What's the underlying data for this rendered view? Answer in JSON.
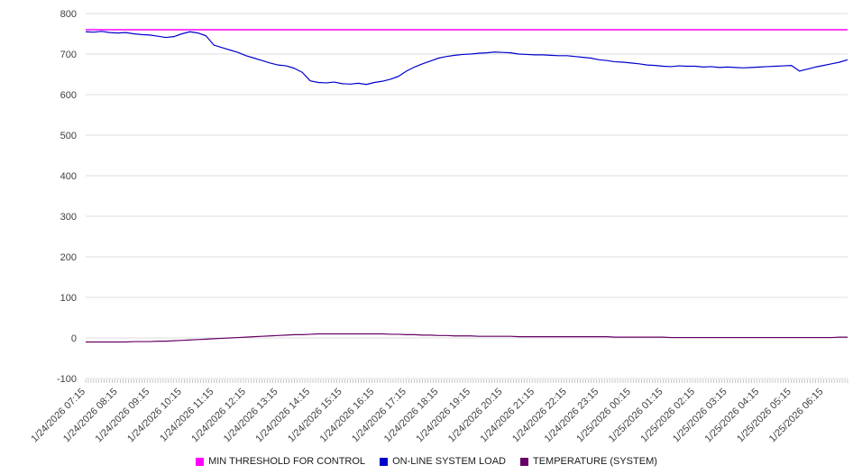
{
  "chart_data": {
    "type": "line",
    "title": "",
    "xlabel": "",
    "ylabel": "",
    "ylim": [
      -100,
      800
    ],
    "y_ticks": [
      800,
      700,
      600,
      500,
      400,
      300,
      200,
      100,
      0,
      -100
    ],
    "grid": true,
    "legend_position": "bottom",
    "x_label_every": 4,
    "x_labels": [
      "1/24/2026 07:15",
      "1/24/2026 08:15",
      "1/24/2026 09:15",
      "1/24/2026 10:15",
      "1/24/2026 11:15",
      "1/24/2026 12:15",
      "1/24/2026 13:15",
      "1/24/2026 14:15",
      "1/24/2026 15:15",
      "1/24/2026 16:15",
      "1/24/2026 17:15",
      "1/24/2026 18:15",
      "1/24/2026 19:15",
      "1/24/2026 20:15",
      "1/24/2026 21:15",
      "1/24/2026 22:15",
      "1/24/2026 23:15",
      "1/25/2026 00:15",
      "1/25/2026 01:15",
      "1/25/2026 02:15",
      "1/25/2026 03:15",
      "1/25/2026 04:15",
      "1/25/2026 05:15",
      "1/25/2026 06:15"
    ],
    "series": [
      {
        "name": "MIN THRESHOLD FOR CONTROL",
        "color": "#FF00FF",
        "constant": 760
      },
      {
        "name": "ON-LINE SYSTEM LOAD",
        "color": "#0000CC",
        "values": [
          755,
          754,
          756,
          753,
          752,
          753,
          750,
          748,
          747,
          744,
          741,
          743,
          750,
          755,
          752,
          745,
          722,
          716,
          710,
          704,
          696,
          690,
          684,
          678,
          673,
          671,
          665,
          655,
          634,
          630,
          629,
          631,
          627,
          626,
          628,
          625,
          630,
          633,
          638,
          645,
          658,
          668,
          676,
          683,
          690,
          694,
          697,
          699,
          700,
          702,
          703,
          705,
          704,
          703,
          700,
          699,
          698,
          698,
          697,
          696,
          696,
          694,
          692,
          690,
          686,
          684,
          681,
          680,
          678,
          676,
          673,
          672,
          670,
          669,
          671,
          670,
          670,
          668,
          669,
          667,
          668,
          667,
          666,
          667,
          668,
          669,
          670,
          671,
          672,
          658,
          663,
          668,
          672,
          676,
          680,
          686
        ]
      },
      {
        "name": "TEMPERATURE (SYSTEM)",
        "color": "#660066",
        "values": [
          -10,
          -10,
          -10,
          -10,
          -10,
          -10,
          -9,
          -9,
          -9,
          -8,
          -8,
          -7,
          -6,
          -5,
          -4,
          -3,
          -2,
          -1,
          0,
          1,
          2,
          3,
          4,
          5,
          6,
          7,
          8,
          8,
          9,
          10,
          10,
          10,
          10,
          10,
          10,
          10,
          10,
          10,
          9,
          9,
          8,
          8,
          7,
          7,
          6,
          6,
          5,
          5,
          5,
          4,
          4,
          4,
          4,
          4,
          3,
          3,
          3,
          3,
          3,
          3,
          3,
          3,
          3,
          3,
          3,
          3,
          2,
          2,
          2,
          2,
          2,
          2,
          2,
          1,
          1,
          1,
          1,
          1,
          1,
          1,
          1,
          1,
          1,
          1,
          1,
          1,
          1,
          1,
          1,
          1,
          1,
          1,
          1,
          1,
          2,
          2
        ]
      }
    ]
  }
}
